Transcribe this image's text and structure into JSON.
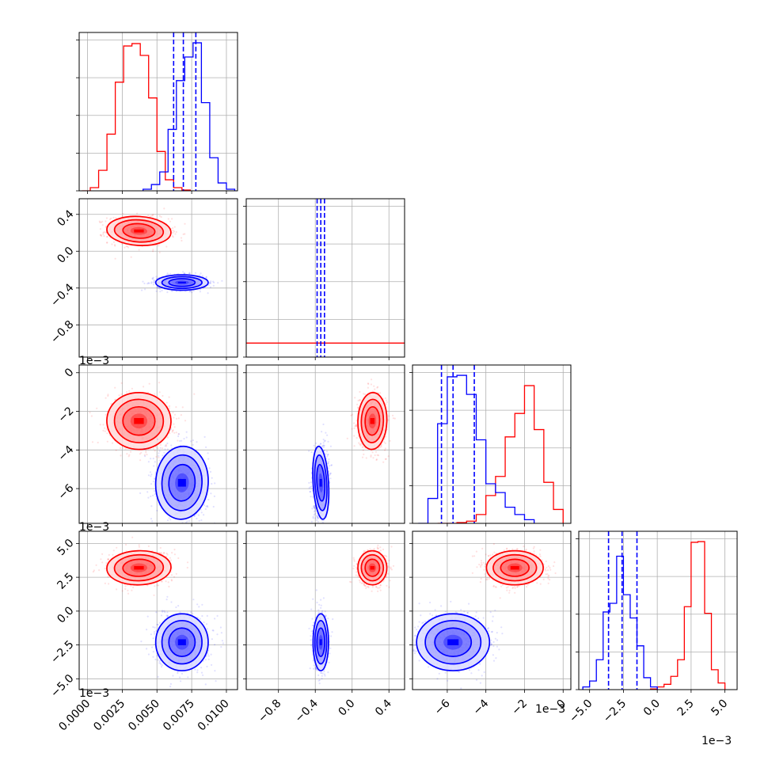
{
  "chart_data": {
    "type": "scatter",
    "title": "",
    "grid": true,
    "colors": {
      "series_a": "#ff0000",
      "series_b": "#0000ff"
    },
    "series": [
      {
        "color": "#ff0000",
        "histograms": [
          {
            "bins": [
              -0.0004,
              0.0002,
              0.0008,
              0.0014,
              0.002,
              0.0026,
              0.0032,
              0.0038,
              0.0044,
              0.005,
              0.0056,
              0.0062,
              0.0068,
              0.0074
            ],
            "counts": [
              0,
              20,
              130,
              360,
              690,
              920,
              935,
              860,
              590,
              250,
              70,
              20,
              5
            ]
          },
          {
            "bins": [
              -0.85,
              -0.55,
              -0.45,
              -0.35,
              -0.25,
              -0.15,
              -0.05,
              0.05,
              0.15,
              0.25,
              0.35,
              0.45,
              0.55
            ],
            "counts": [
              1,
              5,
              20,
              40,
              70,
              150,
              430,
              620,
              2480,
              1020,
              170,
              10
            ]
          },
          {
            "bins": [
              -0.0065,
              -0.006,
              -0.0055,
              -0.005,
              -0.0045,
              -0.004,
              -0.0035,
              -0.003,
              -0.0025,
              -0.002,
              -0.0015,
              -0.001,
              -0.0005,
              0
            ],
            "counts": [
              0,
              0,
              5,
              15,
              60,
              190,
              320,
              590,
              750,
              940,
              640,
              280,
              95
            ]
          },
          {
            "bins": [
              -0.0005,
              0,
              0.0005,
              0.001,
              0.0015,
              0.002,
              0.0025,
              0.003,
              0.0035,
              0.004,
              0.0045,
              0.005
            ],
            "counts": [
              10,
              40,
              80,
              200,
              450,
              1250,
              2220,
              2230,
              1150,
              300,
              100
            ]
          }
        ],
        "pairs": [
          {
            "x": 0.0037,
            "y": 0.00022,
            "sx": 0.0011,
            "sy": 7.5e-05,
            "rho": -0.1
          },
          {
            "x": 0.0037,
            "y": -0.0025,
            "sx": 0.0011,
            "sy": 0.0007,
            "rho": -0.05
          },
          {
            "x": 0.00022,
            "y": -0.0025,
            "sx": 7.5e-05,
            "sy": 0.0007,
            "rho": -0.05
          },
          {
            "x": 0.0037,
            "y": 0.0032,
            "sx": 0.0011,
            "sy": 0.0006,
            "rho": 0.05
          },
          {
            "x": 0.00022,
            "y": 0.0032,
            "sx": 7.5e-05,
            "sy": 0.0006,
            "rho": 0.05
          },
          {
            "x": -0.0025,
            "y": 0.0032,
            "sx": 0.0007,
            "sy": 0.0006,
            "rho": 0.0
          }
        ]
      },
      {
        "color": "#0000ff",
        "histograms": [
          {
            "bins": [
              0.004,
              0.0046,
              0.0052,
              0.0058,
              0.0064,
              0.007,
              0.0076,
              0.0082,
              0.0088,
              0.0094,
              0.01,
              0.0106
            ],
            "counts": [
              10,
              40,
              120,
              390,
              700,
              850,
              940,
              560,
              210,
              50,
              10
            ]
          },
          {
            "bins": [
              -0.7,
              -0.45,
              -0.4,
              -0.35,
              -0.3,
              -0.25,
              -0.2
            ],
            "counts": [
              10,
              1140,
              4510,
              4540,
              2370,
              80
            ]
          },
          {
            "bins": [
              -0.0075,
              -0.007,
              -0.0065,
              -0.006,
              -0.0055,
              -0.005,
              -0.0045,
              -0.004,
              -0.0035,
              -0.003,
              -0.0025,
              -0.002,
              -0.0015
            ],
            "counts": [
              0,
              170,
              680,
              1000,
              1010,
              880,
              570,
              270,
              210,
              110,
              60,
              25
            ]
          },
          {
            "bins": [
              -0.0055,
              -0.005,
              -0.0045,
              -0.004,
              -0.0035,
              -0.003,
              -0.0025,
              -0.002,
              -0.0015,
              -0.001,
              -0.0005,
              0
            ],
            "counts": [
              40,
              130,
              450,
              1170,
              1300,
              2010,
              1430,
              1080,
              660,
              180,
              40
            ]
          }
        ],
        "pairs": [
          {
            "x": 0.0068,
            "y": -0.00034,
            "sx": 0.0009,
            "sy": 4e-05,
            "rho": 0.0
          },
          {
            "x": 0.0068,
            "y": -0.0057,
            "sx": 0.0009,
            "sy": 0.0009,
            "rho": -0.1
          },
          {
            "x": -0.00034,
            "y": -0.0057,
            "sx": 4e-05,
            "sy": 0.0009,
            "rho": 0.1
          },
          {
            "x": 0.0068,
            "y": -0.0023,
            "sx": 0.0009,
            "sy": 0.001,
            "rho": 0.0
          },
          {
            "x": -0.00034,
            "y": -0.0023,
            "sx": 4e-05,
            "sy": 0.001,
            "rho": 0.0
          },
          {
            "x": -0.0057,
            "y": -0.0023,
            "sx": 0.0009,
            "sy": 0.001,
            "rho": 0.0
          }
        ]
      }
    ],
    "quantiles": [
      [
        0.0062,
        0.0069,
        0.0078
      ],
      [
        -0.00038,
        -0.00034,
        -0.0003
      ],
      [
        -0.0063,
        -0.0057,
        -0.0046
      ],
      [
        -0.0036,
        -0.0026,
        -0.0015
      ]
    ],
    "axes": [
      {
        "lim": [
          -0.0006,
          0.0108
        ],
        "ticks": [
          0,
          0.0025,
          0.005,
          0.0075,
          0.01
        ],
        "tick_labels": [
          "0.0000",
          "0.0025",
          "0.0050",
          "0.0075",
          "0.0100"
        ],
        "offset": ""
      },
      {
        "lim": [
          -0.00115,
          0.00057
        ],
        "ticks": [
          -0.0008,
          -0.0004,
          0,
          0.0004
        ],
        "tick_labels": [
          "−0.8",
          "−0.4",
          "0.0",
          "0.4"
        ],
        "offset": "1e−3"
      },
      {
        "lim": [
          -0.0078,
          0.0004
        ],
        "ticks": [
          -0.006,
          -0.004,
          -0.002,
          0
        ],
        "tick_labels": [
          "−6",
          "−4",
          "−2",
          "0"
        ],
        "offset": "1e−3"
      },
      {
        "lim": [
          -0.0058,
          0.0059
        ],
        "ticks": [
          -0.005,
          -0.0025,
          0,
          0.0025,
          0.005
        ],
        "tick_labels": [
          "−5.0",
          "−2.5",
          "0.0",
          "2.5",
          "5.0"
        ],
        "offset": "1e−3"
      }
    ]
  }
}
